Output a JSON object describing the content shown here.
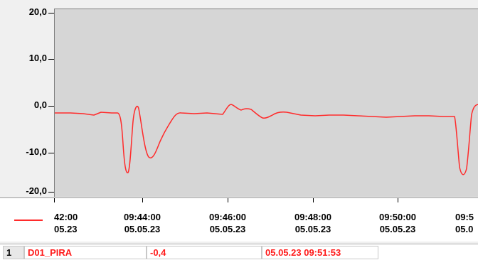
{
  "chart_data": {
    "type": "line",
    "series": [
      {
        "color": "#ff2b2b",
        "points": [
          [
            -9999,
            -1.7
          ],
          [
            -9996,
            -1.7
          ],
          [
            -9990,
            -1.6
          ],
          [
            -9984,
            -2.2
          ],
          [
            -9978,
            -1.9
          ],
          [
            -9970,
            -2.0
          ]
        ]
      }
    ],
    "x_ticks": [
      {
        "time": "42:00",
        "date": "05.23"
      },
      {
        "time": "09:44:00",
        "date": "05.05.23"
      },
      {
        "time": "09:46:00",
        "date": "05.05.23"
      },
      {
        "time": "09:48:00",
        "date": "05.05.23"
      },
      {
        "time": "09:50:00",
        "date": "05.05.23"
      },
      {
        "time": "09:5",
        "date": "05.0"
      }
    ],
    "y_ticks": [
      "20,0",
      "10,0",
      "0,0",
      "-10,0",
      "-20,0"
    ],
    "ylim": [
      -20,
      20
    ],
    "grid": false
  },
  "status": {
    "index": "1",
    "tag": "D01_PIRA",
    "value": "-0,4",
    "timestamp": "05.05.23 09:51:53"
  },
  "colors": {
    "trace": "#ff2b2b",
    "plot_bg": "#d6d6d6"
  }
}
